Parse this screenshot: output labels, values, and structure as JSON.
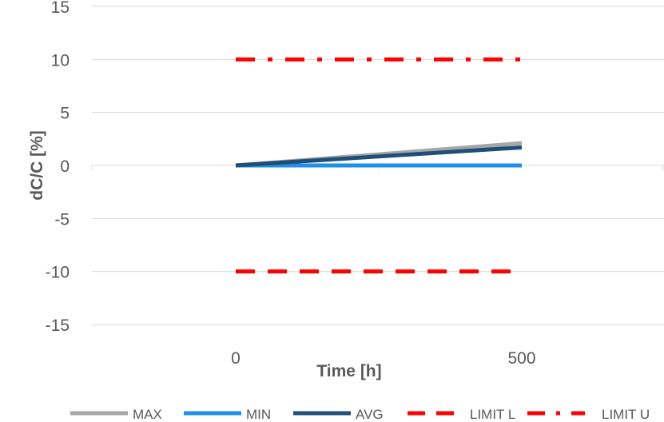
{
  "chart_data": {
    "type": "line",
    "title": "",
    "xlabel": "Time [h]",
    "ylabel": "dC/C [%]",
    "x": [
      0,
      500
    ],
    "x_tick_labels": [
      "0",
      "500"
    ],
    "ylim": [
      -15,
      15
    ],
    "y_ticks": [
      15,
      10,
      5,
      0,
      -5,
      -10,
      -15
    ],
    "y_tick_labels": [
      "15",
      "10",
      "5",
      "0",
      "-5",
      "-10",
      "-15"
    ],
    "grid": "horizontal",
    "legend_position": "bottom",
    "series": [
      {
        "name": "MAX",
        "values": [
          0,
          2.1
        ],
        "color": "#a6a6a6",
        "dash": "solid"
      },
      {
        "name": "MIN",
        "values": [
          0,
          0
        ],
        "color": "#1e90e8",
        "dash": "solid"
      },
      {
        "name": "AVG",
        "values": [
          0,
          1.7
        ],
        "color": "#1f4e79",
        "dash": "solid"
      },
      {
        "name": "LIMIT L",
        "values": [
          -10,
          -10
        ],
        "color": "#ff0000",
        "dash": "dash"
      },
      {
        "name": "LIMIT U",
        "values": [
          10,
          10
        ],
        "color": "#ff0000",
        "dash": "dashdot"
      }
    ]
  }
}
